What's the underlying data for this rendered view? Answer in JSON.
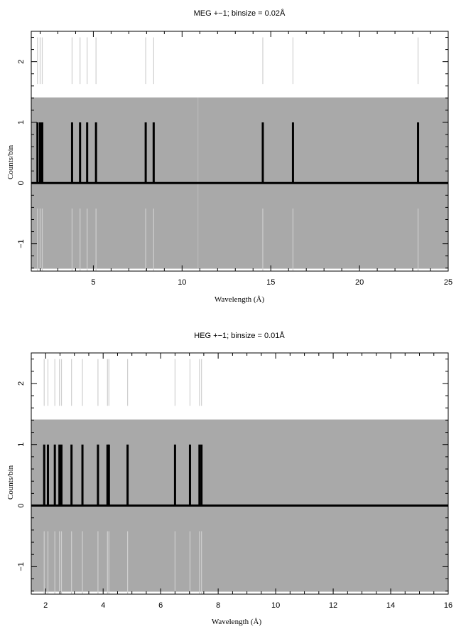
{
  "chart_data": [
    {
      "type": "bar",
      "title": "MEG +−1; binsize = 0.02Å",
      "xlabel": "Wavelength (Å)",
      "ylabel": "Counts/bin",
      "xlim": [
        1.5,
        25
      ],
      "ylim": [
        -1.45,
        2.5
      ],
      "xticks": [
        "5",
        "10",
        "15",
        "20",
        "25"
      ],
      "yticks": [
        "−1",
        "0",
        "1",
        "2"
      ],
      "grid": false,
      "uncertainty_band": {
        "lower": -1.41,
        "upper": 1.41
      },
      "events_x": [
        1.85,
        2.0,
        2.12,
        3.8,
        4.25,
        4.65,
        5.15,
        7.95,
        8.4,
        14.55,
        16.25,
        23.3
      ],
      "values": [
        1,
        1,
        1,
        1,
        1,
        1,
        1,
        1,
        1,
        1,
        1,
        1
      ],
      "upper_ticks": [
        2.1,
        2.4
      ],
      "lower_ticks": [
        -0.42,
        -1.45
      ],
      "colors": {
        "band": "#a9a9a9",
        "counts": "#000000",
        "marker": "#cfcfcf"
      }
    },
    {
      "type": "bar",
      "title": "HEG +−1; binsize = 0.01Å",
      "xlabel": "Wavelength (Å)",
      "ylabel": "Counts/bin",
      "xlim": [
        1.5,
        16
      ],
      "ylim": [
        -1.45,
        2.5
      ],
      "xticks": [
        "2",
        "4",
        "6",
        "8",
        "10",
        "12",
        "14",
        "16"
      ],
      "yticks": [
        "−1",
        "0",
        "1",
        "2"
      ],
      "grid": false,
      "uncertainty_band": {
        "lower": -1.41,
        "upper": 1.41
      },
      "events_x": [
        1.95,
        2.08,
        2.32,
        2.48,
        2.55,
        2.9,
        3.28,
        3.82,
        4.15,
        4.2,
        4.85,
        6.5,
        7.02,
        7.35,
        7.42
      ],
      "values": [
        1,
        1,
        1,
        1,
        1,
        1,
        1,
        1,
        1,
        1,
        1,
        1,
        1,
        1,
        1
      ],
      "upper_ticks": [
        2.1,
        2.4
      ],
      "lower_ticks": [
        -0.42,
        -1.45
      ],
      "colors": {
        "band": "#a9a9a9",
        "counts": "#000000",
        "marker": "#cfcfcf"
      }
    }
  ]
}
